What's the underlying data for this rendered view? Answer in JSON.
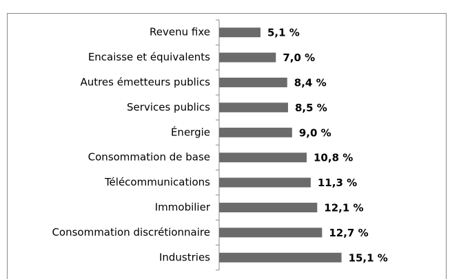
{
  "chart_data": {
    "type": "barh",
    "categories": [
      "Revenu fixe",
      "Encaisse et équivalents",
      "Autres émetteurs publics",
      "Services publics",
      "Énergie",
      "Consommation de base",
      "Télécommunications",
      "Immobilier",
      "Consommation discrétionnaire",
      "Industries"
    ],
    "values": [
      5.1,
      7.0,
      8.4,
      8.5,
      9.0,
      10.8,
      11.3,
      12.1,
      12.7,
      15.1
    ],
    "value_labels": [
      "5,1 %",
      "7,0 %",
      "8,4 %",
      "8,5 %",
      "9,0 %",
      "10,8 %",
      "11,3 %",
      "12,1 %",
      "12,7 %",
      "15,1 %"
    ],
    "color": "#6b6b6b",
    "xlim": [
      0,
      25
    ]
  }
}
